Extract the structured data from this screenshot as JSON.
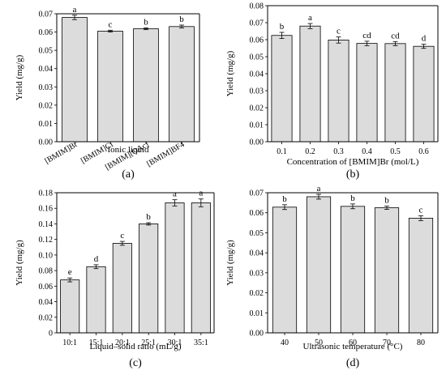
{
  "style": {
    "bar_fill": "#dcdcdc",
    "bar_stroke": "#000000",
    "axis_color": "#000000"
  },
  "chart_data": [
    {
      "type": "bar",
      "panel_label": "(a)",
      "xlabel": "Ionic liquid",
      "ylabel": "Yield (mg/g)",
      "ylim": [
        0,
        0.07
      ],
      "yticks": [
        "0.00",
        "0.01",
        "0.02",
        "0.03",
        "0.04",
        "0.05",
        "0.06",
        "0.07"
      ],
      "categories": [
        "[BMIM]Br",
        "[BMIM]Cl",
        "[BMIM][OAc]",
        "[BMIM]BF4"
      ],
      "values": [
        0.068,
        0.0605,
        0.0618,
        0.063
      ],
      "errors": [
        0.0012,
        0.0005,
        0.0005,
        0.0008
      ],
      "letters": [
        "a",
        "c",
        "b",
        "b"
      ],
      "rotate_xticks": true
    },
    {
      "type": "bar",
      "panel_label": "(b)",
      "xlabel": "Concentration of [BMIM]Br (mol/L)",
      "ylabel": "Yield (mg/g)",
      "ylim": [
        0,
        0.08
      ],
      "yticks": [
        "0.00",
        "0.01",
        "0.02",
        "0.03",
        "0.04",
        "0.05",
        "0.06",
        "0.07",
        "0.08"
      ],
      "categories": [
        "0.1",
        "0.2",
        "0.3",
        "0.4",
        "0.5",
        "0.6"
      ],
      "values": [
        0.0625,
        0.068,
        0.0598,
        0.0578,
        0.0577,
        0.0561
      ],
      "errors": [
        0.0018,
        0.0015,
        0.0018,
        0.0013,
        0.0012,
        0.0012
      ],
      "letters": [
        "b",
        "a",
        "c",
        "cd",
        "cd",
        "d"
      ],
      "rotate_xticks": false
    },
    {
      "type": "bar",
      "panel_label": "(c)",
      "xlabel": "Liquid–solid ratio (mL/g)",
      "ylabel": "Yield (mg/g)",
      "ylim": [
        0,
        0.18
      ],
      "yticks": [
        "0",
        "0.02",
        "0.04",
        "0.06",
        "0.08",
        "0.10",
        "0.12",
        "0.14",
        "0.16",
        "0.18"
      ],
      "categories": [
        "10:1",
        "15:1",
        "20:1",
        "25:1",
        "30:1",
        "35:1"
      ],
      "values": [
        0.068,
        0.085,
        0.115,
        0.14,
        0.167,
        0.167
      ],
      "errors": [
        0.0025,
        0.0025,
        0.0025,
        0.0015,
        0.004,
        0.005
      ],
      "letters": [
        "e",
        "d",
        "c",
        "b",
        "a",
        "a"
      ],
      "rotate_xticks": false
    },
    {
      "type": "bar",
      "panel_label": "(d)",
      "xlabel": "Ultrasonic temperature (°C)",
      "ylabel": "Yield (mg/g)",
      "ylim": [
        0,
        0.07
      ],
      "yticks": [
        "0.00",
        "0.01",
        "0.02",
        "0.03",
        "0.04",
        "0.05",
        "0.06",
        "0.07"
      ],
      "categories": [
        "40",
        "50",
        "60",
        "70",
        "80"
      ],
      "values": [
        0.0628,
        0.068,
        0.0632,
        0.0625,
        0.0573
      ],
      "errors": [
        0.0012,
        0.0012,
        0.0012,
        0.0008,
        0.0012
      ],
      "letters": [
        "b",
        "a",
        "b",
        "b",
        "c"
      ],
      "rotate_xticks": false
    }
  ]
}
